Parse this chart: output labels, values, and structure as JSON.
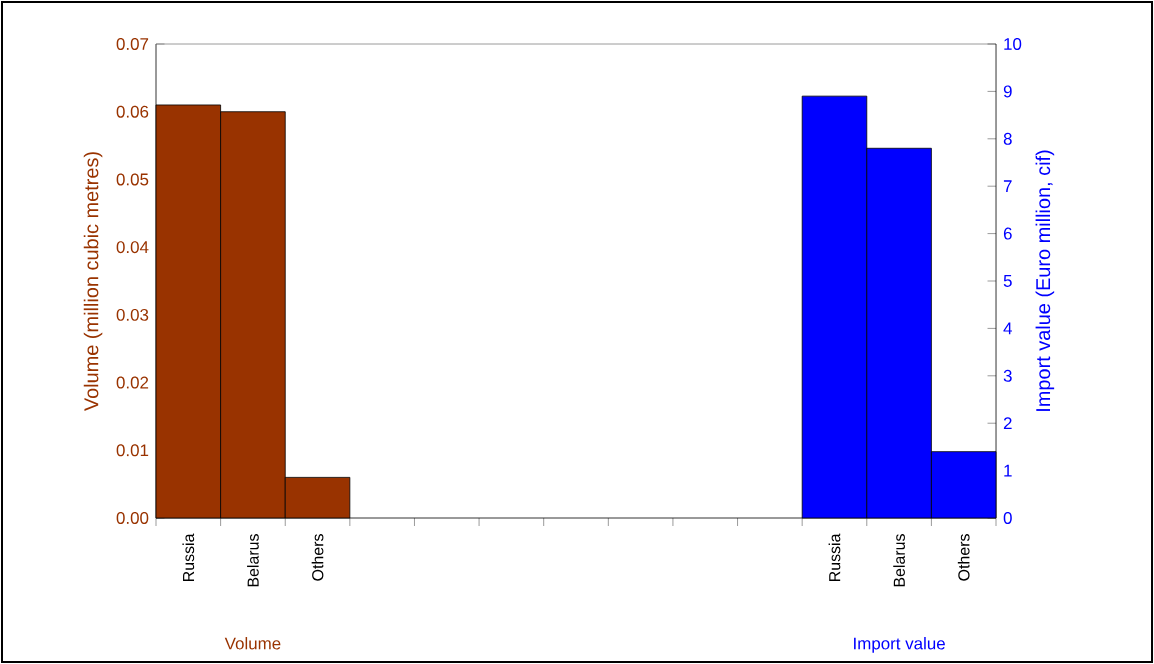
{
  "chart_data": {
    "type": "bar",
    "categories": [
      "Russia",
      "Belarus",
      "Others",
      null,
      null,
      null,
      null,
      null,
      null,
      null,
      "Russia",
      "Belarus",
      "Others"
    ],
    "series": [
      {
        "name": "Volume",
        "color": "#993300",
        "values": [
          0.061,
          0.06,
          0.006,
          null,
          null,
          null,
          null,
          null,
          null,
          null,
          null,
          null,
          null
        ]
      },
      {
        "name": "Import value",
        "color": "#0000ff",
        "axis": "y2",
        "values": [
          null,
          null,
          null,
          null,
          null,
          null,
          null,
          null,
          null,
          null,
          8.9,
          7.8,
          1.4
        ]
      }
    ],
    "ylabel": "Volume (million cubic metres)",
    "y2label": "Import value (Euro million, cif)",
    "ylim": [
      0,
      0.07
    ],
    "yticks": [
      {
        "value": 0,
        "label": "0.00"
      },
      0.01,
      0.02,
      0.03,
      0.04,
      0.05,
      0.06,
      0.07
    ],
    "y2lim": [
      0,
      10
    ],
    "y2ticks": [
      0,
      1,
      2,
      3,
      4,
      5,
      6,
      7,
      8,
      9,
      10
    ],
    "grid": false
  }
}
